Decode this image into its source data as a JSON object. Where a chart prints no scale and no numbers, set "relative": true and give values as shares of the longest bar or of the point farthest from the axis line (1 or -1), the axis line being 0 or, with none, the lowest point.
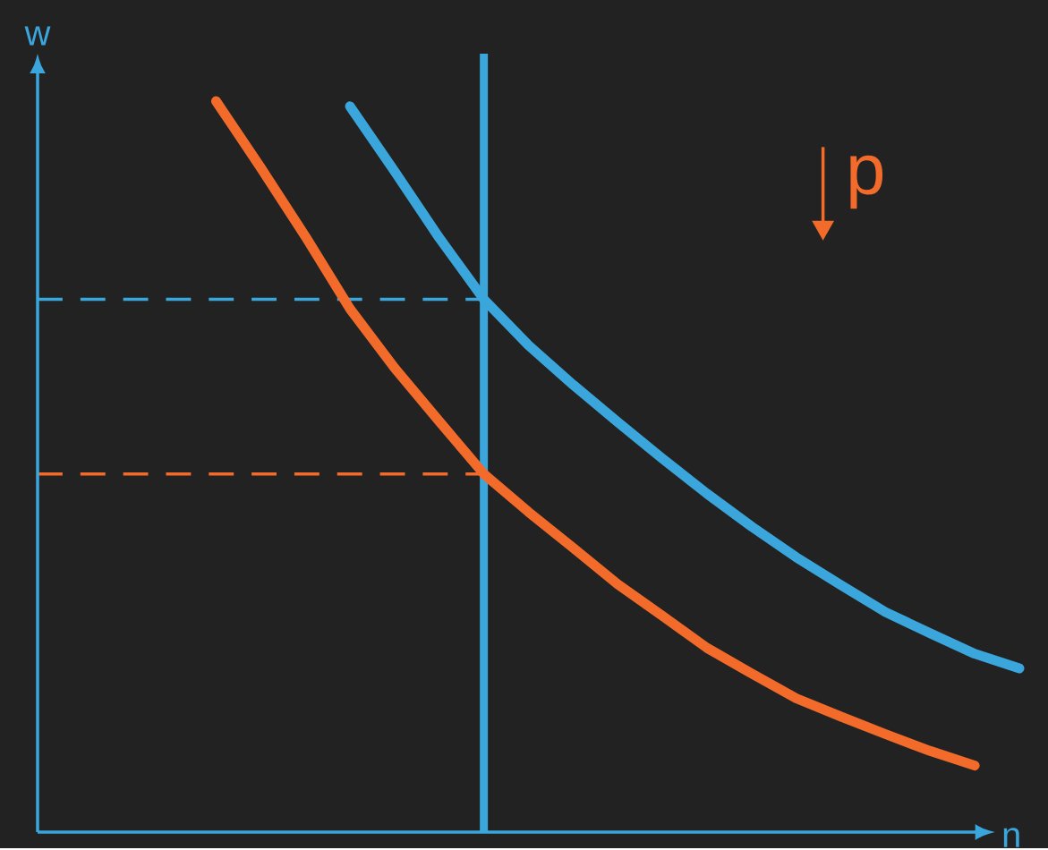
{
  "chart_data": {
    "type": "line",
    "relative": true,
    "xlabel": "n",
    "ylabel": "w",
    "marker": "none",
    "annotations": [
      "p"
    ],
    "categories": [
      null,
      null,
      null,
      null,
      null,
      null,
      null,
      null,
      null,
      null,
      null,
      null,
      null,
      null,
      null,
      null,
      null,
      null,
      null,
      null,
      null,
      null,
      null
    ],
    "series": [
      {
        "color": "#3aa6dc",
        "values": [
          null,
          null,
          null,
          null,
          null,
          null,
          null,
          0.993,
          0.904,
          0.813,
          0.729,
          0.666,
          0.612,
          0.561,
          0.511,
          0.463,
          0.418,
          0.376,
          0.338,
          0.301,
          0.272,
          0.244,
          0.224
        ]
      },
      {
        "color": "#f26b2a",
        "values": [
          null,
          null,
          null,
          null,
          1.0,
          0.909,
          0.815,
          0.716,
          0.635,
          0.562,
          0.49,
          0.438,
          0.389,
          0.339,
          0.296,
          0.252,
          0.217,
          0.183,
          0.158,
          0.134,
          0.111,
          0.091,
          null
        ]
      }
    ],
    "ref_lines": [
      {
        "axis": "y",
        "value": 0.729,
        "color": "#3aa6dc",
        "line_style": "dashed"
      },
      {
        "axis": "y",
        "value": 0.49,
        "color": "#f26b2a",
        "line_style": "dashed"
      }
    ]
  }
}
